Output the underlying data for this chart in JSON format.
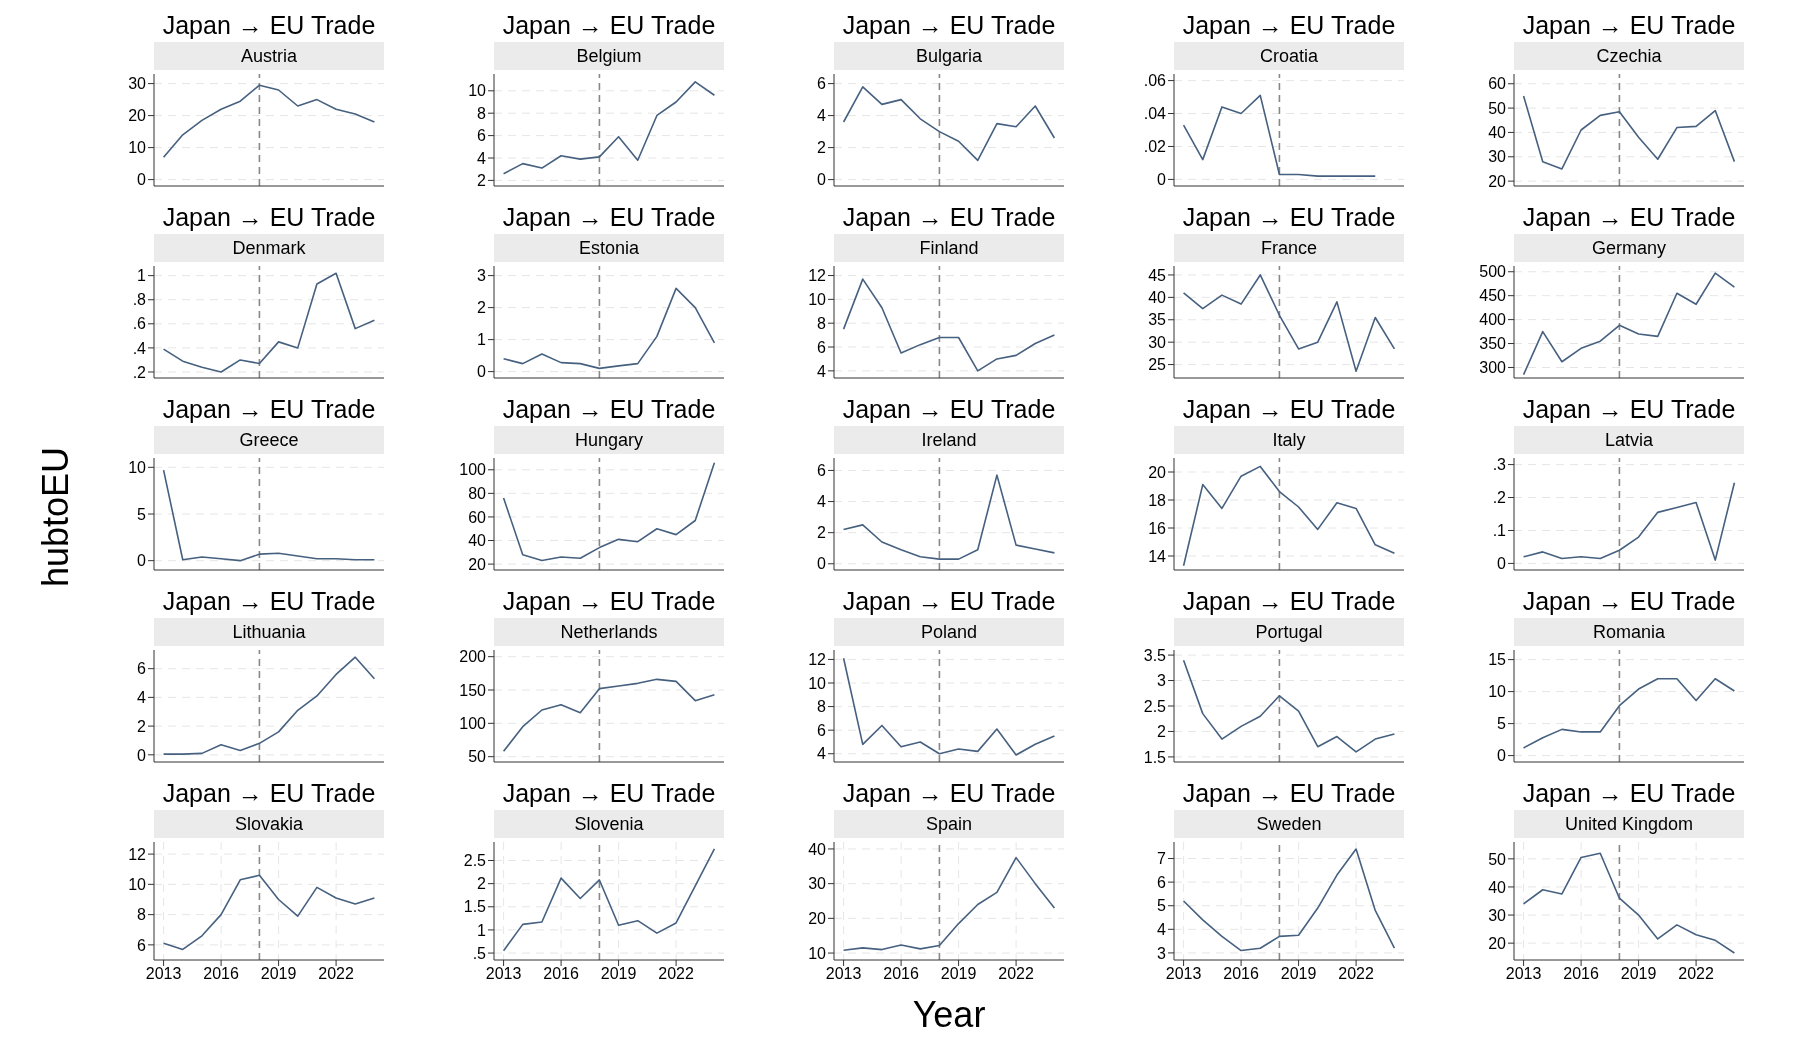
{
  "chart_data": [
    {
      "type": "line",
      "title": "Japan → EU Trade",
      "subtitle": "Austria",
      "x": [
        2013,
        2014,
        2015,
        2016,
        2017,
        2018,
        2019,
        2020,
        2021,
        2022,
        2023,
        2024
      ],
      "values": [
        7,
        14,
        18.5,
        22,
        24.5,
        29.5,
        28,
        23,
        25,
        22,
        20.5,
        18
      ],
      "color": "#46607f",
      "xlim": [
        2012.5,
        2024.5
      ],
      "xticks": [
        2013,
        2016,
        2019,
        2022
      ],
      "ylim": [
        -2,
        33
      ],
      "yticks": [
        0,
        10,
        20,
        30
      ],
      "grid": true,
      "tick_labels": "y",
      "ref_lines": [
        {
          "axis": "x",
          "value": 2018,
          "color": "#888888",
          "line_style": "dashed"
        }
      ]
    },
    {
      "type": "line",
      "title": "Japan → EU Trade",
      "subtitle": "Belgium",
      "x": [
        2013,
        2014,
        2015,
        2016,
        2017,
        2018,
        2019,
        2020,
        2021,
        2022,
        2023,
        2024
      ],
      "values": [
        2.6,
        3.5,
        3.1,
        4.2,
        3.9,
        4.1,
        5.9,
        3.8,
        7.8,
        9,
        10.8,
        9.6
      ],
      "color": "#46607f",
      "xlim": [
        2012.5,
        2024.5
      ],
      "xticks": [
        2013,
        2016,
        2019,
        2022
      ],
      "ylim": [
        1.5,
        11.5
      ],
      "yticks": [
        2,
        4,
        6,
        8,
        10
      ],
      "grid": true,
      "tick_labels": "y",
      "ref_lines": [
        {
          "axis": "x",
          "value": 2018,
          "color": "#888888",
          "line_style": "dashed"
        }
      ]
    },
    {
      "type": "line",
      "title": "Japan → EU Trade",
      "subtitle": "Bulgaria",
      "x": [
        2013,
        2014,
        2015,
        2016,
        2017,
        2018,
        2019,
        2020,
        2021,
        2022,
        2023,
        2024
      ],
      "values": [
        3.6,
        5.8,
        4.7,
        5,
        3.8,
        3,
        2.4,
        1.2,
        3.5,
        3.3,
        4.6,
        2.6
      ],
      "color": "#46607f",
      "xlim": [
        2012.5,
        2024.5
      ],
      "xticks": [
        2013,
        2016,
        2019,
        2022
      ],
      "ylim": [
        -0.4,
        6.6
      ],
      "yticks": [
        0,
        2,
        4,
        6
      ],
      "grid": true,
      "tick_labels": "y",
      "ref_lines": [
        {
          "axis": "x",
          "value": 2018,
          "color": "#888888",
          "line_style": "dashed"
        }
      ]
    },
    {
      "type": "line",
      "title": "Japan → EU Trade",
      "subtitle": "Croatia",
      "x": [
        2013,
        2014,
        2015,
        2016,
        2017,
        2018,
        2019,
        2020,
        2021,
        2022,
        2023
      ],
      "values": [
        0.033,
        0.012,
        0.044,
        0.04,
        0.051,
        0.003,
        0.003,
        0.002,
        0.002,
        0.002,
        0.002
      ],
      "color": "#46607f",
      "xlim": [
        2012.5,
        2024.5
      ],
      "xticks": [
        2013,
        2016,
        2019,
        2022
      ],
      "ylim": [
        -0.004,
        0.064
      ],
      "yticks": [
        0,
        {
          "value": 0.02,
          "label": ".02"
        },
        {
          "value": 0.04,
          "label": ".04"
        },
        {
          "value": 0.06,
          "label": ".06"
        }
      ],
      "grid": true,
      "tick_labels": "y",
      "ref_lines": [
        {
          "axis": "x",
          "value": 2018,
          "color": "#888888",
          "line_style": "dashed"
        }
      ]
    },
    {
      "type": "line",
      "title": "Japan → EU Trade",
      "subtitle": "Czechia",
      "x": [
        2013,
        2014,
        2015,
        2016,
        2017,
        2018,
        2019,
        2020,
        2021,
        2022,
        2023,
        2024
      ],
      "values": [
        55,
        28,
        25,
        41,
        47,
        48.5,
        38,
        29,
        42,
        42.5,
        49,
        28
      ],
      "color": "#46607f",
      "xlim": [
        2012.5,
        2024.5
      ],
      "xticks": [
        2013,
        2016,
        2019,
        2022
      ],
      "ylim": [
        18,
        64
      ],
      "yticks": [
        20,
        30,
        40,
        50,
        60
      ],
      "grid": true,
      "tick_labels": "y",
      "ref_lines": [
        {
          "axis": "x",
          "value": 2018,
          "color": "#888888",
          "line_style": "dashed"
        }
      ]
    },
    {
      "type": "line",
      "title": "Japan → EU Trade",
      "subtitle": "Denmark",
      "x": [
        2013,
        2014,
        2015,
        2016,
        2017,
        2018,
        2019,
        2020,
        2021,
        2022,
        2023,
        2024
      ],
      "values": [
        0.39,
        0.29,
        0.24,
        0.2,
        0.3,
        0.27,
        0.45,
        0.4,
        0.93,
        1.02,
        0.56,
        0.63
      ],
      "color": "#46607f",
      "xlim": [
        2012.5,
        2024.5
      ],
      "xticks": [
        2013,
        2016,
        2019,
        2022
      ],
      "ylim": [
        0.15,
        1.08
      ],
      "yticks": [
        {
          "value": 0.2,
          "label": ".2"
        },
        {
          "value": 0.4,
          "label": ".4"
        },
        {
          "value": 0.6,
          "label": ".6"
        },
        {
          "value": 0.8,
          "label": ".8"
        },
        1
      ],
      "grid": true,
      "tick_labels": "y",
      "ref_lines": [
        {
          "axis": "x",
          "value": 2018,
          "color": "#888888",
          "line_style": "dashed"
        }
      ]
    },
    {
      "type": "line",
      "title": "Japan → EU Trade",
      "subtitle": "Estonia",
      "x": [
        2013,
        2014,
        2015,
        2016,
        2017,
        2018,
        2019,
        2020,
        2021,
        2022,
        2023,
        2024
      ],
      "values": [
        0.4,
        0.25,
        0.55,
        0.28,
        0.25,
        0.1,
        0.18,
        0.25,
        1.1,
        2.6,
        2,
        0.9
      ],
      "color": "#46607f",
      "xlim": [
        2012.5,
        2024.5
      ],
      "xticks": [
        2013,
        2016,
        2019,
        2022
      ],
      "ylim": [
        -0.2,
        3.3
      ],
      "yticks": [
        0,
        1,
        2,
        3
      ],
      "grid": true,
      "tick_labels": "y",
      "ref_lines": [
        {
          "axis": "x",
          "value": 2018,
          "color": "#888888",
          "line_style": "dashed"
        }
      ]
    },
    {
      "type": "line",
      "title": "Japan → EU Trade",
      "subtitle": "Finland",
      "x": [
        2013,
        2014,
        2015,
        2016,
        2017,
        2018,
        2019,
        2020,
        2021,
        2022,
        2023,
        2024
      ],
      "values": [
        7.5,
        11.7,
        9.3,
        5.5,
        6.2,
        6.8,
        6.8,
        4,
        5,
        5.3,
        6.3,
        7
      ],
      "color": "#46607f",
      "xlim": [
        2012.5,
        2024.5
      ],
      "xticks": [
        2013,
        2016,
        2019,
        2022
      ],
      "ylim": [
        3.4,
        12.8
      ],
      "yticks": [
        4,
        6,
        8,
        10,
        12
      ],
      "grid": true,
      "tick_labels": "y",
      "ref_lines": [
        {
          "axis": "x",
          "value": 2018,
          "color": "#888888",
          "line_style": "dashed"
        }
      ]
    },
    {
      "type": "line",
      "title": "Japan → EU Trade",
      "subtitle": "France",
      "x": [
        2013,
        2014,
        2015,
        2016,
        2017,
        2018,
        2019,
        2020,
        2021,
        2022,
        2023,
        2024
      ],
      "values": [
        41,
        37.5,
        40.5,
        38.5,
        45,
        36,
        28.5,
        30,
        39,
        23.5,
        35.5,
        28.5
      ],
      "color": "#46607f",
      "xlim": [
        2012.5,
        2024.5
      ],
      "xticks": [
        2013,
        2016,
        2019,
        2022
      ],
      "ylim": [
        22,
        47
      ],
      "yticks": [
        25,
        30,
        35,
        40,
        45
      ],
      "grid": true,
      "tick_labels": "y",
      "ref_lines": [
        {
          "axis": "x",
          "value": 2018,
          "color": "#888888",
          "line_style": "dashed"
        }
      ]
    },
    {
      "type": "line",
      "title": "Japan → EU Trade",
      "subtitle": "Germany",
      "x": [
        2013,
        2014,
        2015,
        2016,
        2017,
        2018,
        2019,
        2020,
        2021,
        2022,
        2023,
        2024
      ],
      "values": [
        285,
        375,
        312,
        340,
        355,
        388,
        370,
        365,
        455,
        432,
        497,
        468
      ],
      "color": "#46607f",
      "xlim": [
        2012.5,
        2024.5
      ],
      "xticks": [
        2013,
        2016,
        2019,
        2022
      ],
      "ylim": [
        278,
        512
      ],
      "yticks": [
        300,
        350,
        400,
        450,
        500
      ],
      "grid": true,
      "tick_labels": "y",
      "ref_lines": [
        {
          "axis": "x",
          "value": 2018,
          "color": "#888888",
          "line_style": "dashed"
        }
      ]
    },
    {
      "type": "line",
      "title": "Japan → EU Trade",
      "subtitle": "Greece",
      "ylabel": "hubtoEU",
      "x": [
        2013,
        2014,
        2015,
        2016,
        2017,
        2018,
        2019,
        2020,
        2021,
        2022,
        2023,
        2024
      ],
      "values": [
        9.7,
        0.1,
        0.4,
        0.2,
        0,
        0.7,
        0.8,
        0.5,
        0.2,
        0.2,
        0.1,
        0.1
      ],
      "color": "#46607f",
      "xlim": [
        2012.5,
        2024.5
      ],
      "xticks": [
        2013,
        2016,
        2019,
        2022
      ],
      "ylim": [
        -1,
        11
      ],
      "yticks": [
        0,
        5,
        10
      ],
      "grid": true,
      "tick_labels": "y",
      "ref_lines": [
        {
          "axis": "x",
          "value": 2018,
          "color": "#888888",
          "line_style": "dashed"
        }
      ]
    },
    {
      "type": "line",
      "title": "Japan → EU Trade",
      "subtitle": "Hungary",
      "x": [
        2013,
        2014,
        2015,
        2016,
        2017,
        2018,
        2019,
        2020,
        2021,
        2022,
        2023,
        2024
      ],
      "values": [
        76,
        28,
        23,
        26,
        25,
        34,
        41,
        39,
        50,
        45,
        57,
        106
      ],
      "color": "#46607f",
      "xlim": [
        2012.5,
        2024.5
      ],
      "xticks": [
        2013,
        2016,
        2019,
        2022
      ],
      "ylim": [
        15,
        110
      ],
      "yticks": [
        20,
        40,
        60,
        80,
        100
      ],
      "grid": true,
      "tick_labels": "y",
      "ref_lines": [
        {
          "axis": "x",
          "value": 2018,
          "color": "#888888",
          "line_style": "dashed"
        }
      ]
    },
    {
      "type": "line",
      "title": "Japan → EU Trade",
      "subtitle": "Ireland",
      "x": [
        2013,
        2014,
        2015,
        2016,
        2017,
        2018,
        2019,
        2020,
        2021,
        2022,
        2023,
        2024
      ],
      "values": [
        2.2,
        2.5,
        1.4,
        0.9,
        0.45,
        0.3,
        0.3,
        0.9,
        5.7,
        1.2,
        0.95,
        0.7
      ],
      "color": "#46607f",
      "xlim": [
        2012.5,
        2024.5
      ],
      "xticks": [
        2013,
        2016,
        2019,
        2022
      ],
      "ylim": [
        -0.4,
        6.8
      ],
      "yticks": [
        0,
        2,
        4,
        6
      ],
      "grid": true,
      "tick_labels": "y",
      "ref_lines": [
        {
          "axis": "x",
          "value": 2018,
          "color": "#888888",
          "line_style": "dashed"
        }
      ]
    },
    {
      "type": "line",
      "title": "Japan → EU Trade",
      "subtitle": "Italy",
      "x": [
        2013,
        2014,
        2015,
        2016,
        2017,
        2018,
        2019,
        2020,
        2021,
        2022,
        2023,
        2024
      ],
      "values": [
        13.3,
        19.1,
        17.4,
        19.7,
        20.4,
        18.6,
        17.5,
        15.9,
        17.8,
        17.4,
        14.8,
        14.2
      ],
      "color": "#46607f",
      "xlim": [
        2012.5,
        2024.5
      ],
      "xticks": [
        2013,
        2016,
        2019,
        2022
      ],
      "ylim": [
        13,
        21
      ],
      "yticks": [
        14,
        16,
        18,
        20
      ],
      "grid": true,
      "tick_labels": "y",
      "ref_lines": [
        {
          "axis": "x",
          "value": 2018,
          "color": "#888888",
          "line_style": "dashed"
        }
      ]
    },
    {
      "type": "line",
      "title": "Japan → EU Trade",
      "subtitle": "Latvia",
      "x": [
        2013,
        2014,
        2015,
        2016,
        2017,
        2018,
        2019,
        2020,
        2021,
        2022,
        2023,
        2024
      ],
      "values": [
        0.02,
        0.035,
        0.015,
        0.02,
        0.015,
        0.04,
        0.08,
        0.155,
        0.17,
        0.185,
        0.01,
        0.245
      ],
      "color": "#46607f",
      "xlim": [
        2012.5,
        2024.5
      ],
      "xticks": [
        2013,
        2016,
        2019,
        2022
      ],
      "ylim": [
        -0.02,
        0.32
      ],
      "yticks": [
        0,
        {
          "value": 0.1,
          "label": ".1"
        },
        {
          "value": 0.2,
          "label": ".2"
        },
        {
          "value": 0.3,
          "label": ".3"
        }
      ],
      "grid": true,
      "tick_labels": "y",
      "ref_lines": [
        {
          "axis": "x",
          "value": 2018,
          "color": "#888888",
          "line_style": "dashed"
        }
      ]
    },
    {
      "type": "line",
      "title": "Japan → EU Trade",
      "subtitle": "Lithuania",
      "x": [
        2013,
        2014,
        2015,
        2016,
        2017,
        2018,
        2019,
        2020,
        2021,
        2022,
        2023,
        2024
      ],
      "values": [
        0.05,
        0.05,
        0.1,
        0.7,
        0.3,
        0.8,
        1.6,
        3.1,
        4.1,
        5.6,
        6.8,
        5.3
      ],
      "color": "#46607f",
      "xlim": [
        2012.5,
        2024.5
      ],
      "xticks": [
        2013,
        2016,
        2019,
        2022
      ],
      "ylim": [
        -0.5,
        7.3
      ],
      "yticks": [
        0,
        2,
        4,
        6
      ],
      "grid": true,
      "tick_labels": "y",
      "ref_lines": [
        {
          "axis": "x",
          "value": 2018,
          "color": "#888888",
          "line_style": "dashed"
        }
      ]
    },
    {
      "type": "line",
      "title": "Japan → EU Trade",
      "subtitle": "Netherlands",
      "x": [
        2013,
        2014,
        2015,
        2016,
        2017,
        2018,
        2019,
        2020,
        2021,
        2022,
        2023,
        2024
      ],
      "values": [
        58,
        95,
        120,
        128,
        116,
        152,
        156,
        160,
        166,
        163,
        134,
        143
      ],
      "color": "#46607f",
      "xlim": [
        2012.5,
        2024.5
      ],
      "xticks": [
        2013,
        2016,
        2019,
        2022
      ],
      "ylim": [
        42,
        210
      ],
      "yticks": [
        50,
        100,
        150,
        200
      ],
      "grid": true,
      "tick_labels": "y",
      "ref_lines": [
        {
          "axis": "x",
          "value": 2018,
          "color": "#888888",
          "line_style": "dashed"
        }
      ]
    },
    {
      "type": "line",
      "title": "Japan → EU Trade",
      "subtitle": "Poland",
      "x": [
        2013,
        2014,
        2015,
        2016,
        2017,
        2018,
        2019,
        2020,
        2021,
        2022,
        2023,
        2024
      ],
      "values": [
        12.1,
        4.8,
        6.4,
        4.6,
        5,
        4,
        4.4,
        4.2,
        6.1,
        3.9,
        4.8,
        5.5
      ],
      "color": "#46607f",
      "xlim": [
        2012.5,
        2024.5
      ],
      "xticks": [
        2013,
        2016,
        2019,
        2022
      ],
      "ylim": [
        3.3,
        12.8
      ],
      "yticks": [
        4,
        6,
        8,
        10,
        12
      ],
      "grid": true,
      "tick_labels": "y",
      "ref_lines": [
        {
          "axis": "x",
          "value": 2018,
          "color": "#888888",
          "line_style": "dashed"
        }
      ]
    },
    {
      "type": "line",
      "title": "Japan → EU Trade",
      "subtitle": "Portugal",
      "x": [
        2013,
        2014,
        2015,
        2016,
        2017,
        2018,
        2019,
        2020,
        2021,
        2022,
        2023,
        2024
      ],
      "values": [
        3.4,
        2.35,
        1.85,
        2.1,
        2.3,
        2.7,
        2.4,
        1.7,
        1.9,
        1.6,
        1.85,
        1.95
      ],
      "color": "#46607f",
      "xlim": [
        2012.5,
        2024.5
      ],
      "xticks": [
        2013,
        2016,
        2019,
        2022
      ],
      "ylim": [
        1.4,
        3.6
      ],
      "yticks": [
        1.5,
        2,
        2.5,
        3,
        3.5
      ],
      "grid": true,
      "tick_labels": "y",
      "ref_lines": [
        {
          "axis": "x",
          "value": 2018,
          "color": "#888888",
          "line_style": "dashed"
        }
      ]
    },
    {
      "type": "line",
      "title": "Japan → EU Trade",
      "subtitle": "Romania",
      "x": [
        2013,
        2014,
        2015,
        2016,
        2017,
        2018,
        2019,
        2020,
        2021,
        2022,
        2023,
        2024
      ],
      "values": [
        1.2,
        2.8,
        4.1,
        3.7,
        3.7,
        7.8,
        10.4,
        12,
        12,
        8.6,
        12,
        10.1
      ],
      "color": "#46607f",
      "xlim": [
        2012.5,
        2024.5
      ],
      "xticks": [
        2013,
        2016,
        2019,
        2022
      ],
      "ylim": [
        -1,
        16.5
      ],
      "yticks": [
        0,
        5,
        10,
        15
      ],
      "grid": true,
      "tick_labels": "y",
      "ref_lines": [
        {
          "axis": "x",
          "value": 2018,
          "color": "#888888",
          "line_style": "dashed"
        }
      ]
    },
    {
      "type": "line",
      "title": "Japan → EU Trade",
      "subtitle": "Slovakia",
      "x": [
        2013,
        2014,
        2015,
        2016,
        2017,
        2018,
        2019,
        2020,
        2021,
        2022,
        2023,
        2024
      ],
      "values": [
        6.1,
        5.7,
        6.6,
        8,
        10.3,
        10.6,
        9,
        7.9,
        9.8,
        9.1,
        8.7,
        9.1
      ],
      "color": "#46607f",
      "xlim": [
        2012.5,
        2024.5
      ],
      "xticks": [
        2013,
        2016,
        2019,
        2022
      ],
      "ylim": [
        5,
        12.8
      ],
      "yticks": [
        6,
        8,
        10,
        12
      ],
      "grid": true,
      "ref_lines": [
        {
          "axis": "x",
          "value": 2018,
          "color": "#888888",
          "line_style": "dashed"
        }
      ]
    },
    {
      "type": "line",
      "title": "Japan → EU Trade",
      "subtitle": "Slovenia",
      "x": [
        2013,
        2014,
        2015,
        2016,
        2017,
        2018,
        2019,
        2020,
        2021,
        2022,
        2023,
        2024
      ],
      "values": [
        0.55,
        1.12,
        1.17,
        2.12,
        1.68,
        2.08,
        1.1,
        1.2,
        0.93,
        1.15,
        1.95,
        2.75
      ],
      "color": "#46607f",
      "xlim": [
        2012.5,
        2024.5
      ],
      "xticks": [
        2013,
        2016,
        2019,
        2022
      ],
      "ylim": [
        0.35,
        2.9
      ],
      "yticks": [
        {
          "value": 0.5,
          "label": ".5"
        },
        1,
        1.5,
        2,
        2.5
      ],
      "grid": true,
      "ref_lines": [
        {
          "axis": "x",
          "value": 2018,
          "color": "#888888",
          "line_style": "dashed"
        }
      ]
    },
    {
      "type": "line",
      "title": "Japan → EU Trade",
      "subtitle": "Spain",
      "xlabel": "Year",
      "x": [
        2013,
        2014,
        2015,
        2016,
        2017,
        2018,
        2019,
        2020,
        2021,
        2022,
        2023,
        2024
      ],
      "values": [
        10.8,
        11.5,
        11,
        12.3,
        11.2,
        12.2,
        18.5,
        24,
        27.5,
        37.5,
        30,
        23
      ],
      "color": "#46607f",
      "xlim": [
        2012.5,
        2024.5
      ],
      "xticks": [
        2013,
        2016,
        2019,
        2022
      ],
      "ylim": [
        8,
        42
      ],
      "yticks": [
        10,
        20,
        30,
        40
      ],
      "grid": true,
      "ref_lines": [
        {
          "axis": "x",
          "value": 2018,
          "color": "#888888",
          "line_style": "dashed"
        }
      ]
    },
    {
      "type": "line",
      "title": "Japan → EU Trade",
      "subtitle": "Sweden",
      "x": [
        2013,
        2014,
        2015,
        2016,
        2017,
        2018,
        2019,
        2020,
        2021,
        2022,
        2023,
        2024
      ],
      "values": [
        5.2,
        4.4,
        3.7,
        3.1,
        3.2,
        3.7,
        3.75,
        4.9,
        6.3,
        7.4,
        4.8,
        3.2
      ],
      "color": "#46607f",
      "xlim": [
        2012.5,
        2024.5
      ],
      "xticks": [
        2013,
        2016,
        2019,
        2022
      ],
      "ylim": [
        2.7,
        7.7
      ],
      "yticks": [
        3,
        4,
        5,
        6,
        7
      ],
      "grid": true,
      "ref_lines": [
        {
          "axis": "x",
          "value": 2018,
          "color": "#888888",
          "line_style": "dashed"
        }
      ]
    },
    {
      "type": "line",
      "title": "Japan → EU Trade",
      "subtitle": "United Kingdom",
      "x": [
        2013,
        2014,
        2015,
        2016,
        2017,
        2018,
        2019,
        2020,
        2021,
        2022,
        2023,
        2024
      ],
      "values": [
        34,
        39,
        37.5,
        50.5,
        52,
        36,
        30,
        21.5,
        26.5,
        23,
        21,
        16.5
      ],
      "color": "#46607f",
      "xlim": [
        2012.5,
        2024.5
      ],
      "xticks": [
        2013,
        2016,
        2019,
        2022
      ],
      "ylim": [
        14,
        56
      ],
      "yticks": [
        20,
        30,
        40,
        50
      ],
      "grid": true,
      "ref_lines": [
        {
          "axis": "x",
          "value": 2018,
          "color": "#888888",
          "line_style": "dashed"
        }
      ]
    }
  ]
}
